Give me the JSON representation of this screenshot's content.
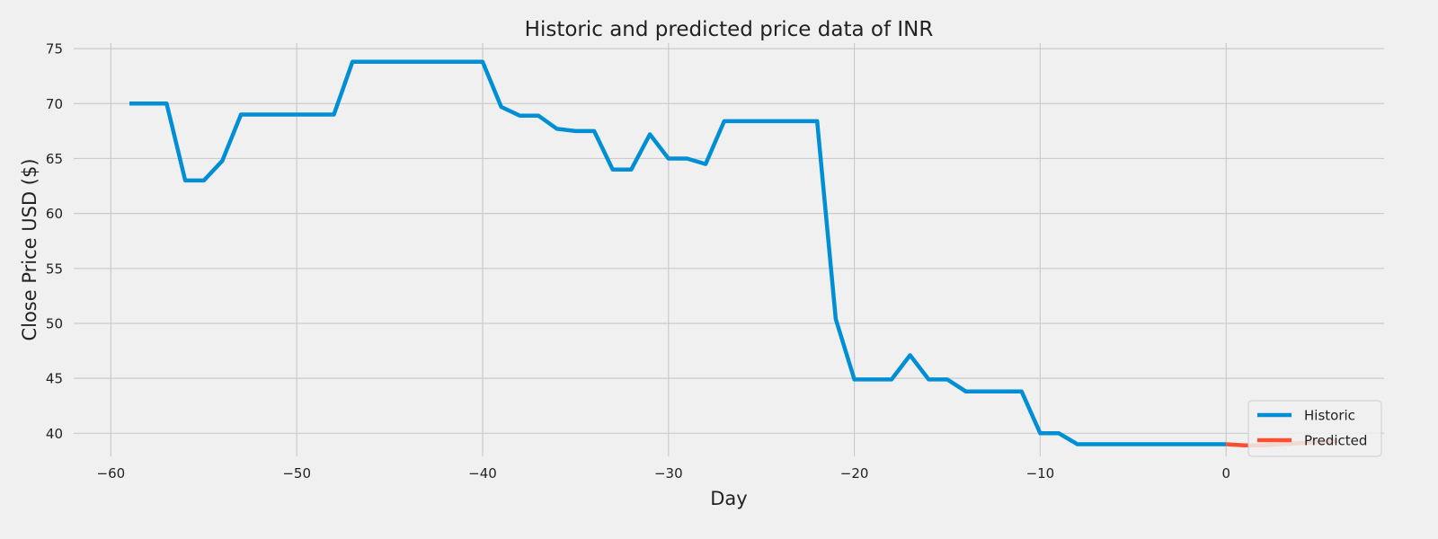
{
  "chart_data": {
    "type": "line",
    "title": "Historic and predicted price data of INR",
    "xlabel": "Day",
    "ylabel": "Close Price USD ($)",
    "xlim": [
      -62,
      8.5
    ],
    "ylim": [
      37.9,
      75.5
    ],
    "xticks": [
      -60,
      -50,
      -40,
      -30,
      -20,
      -10,
      0
    ],
    "xtick_labels": [
      "−60",
      "−50",
      "−40",
      "−30",
      "−20",
      "−10",
      "0"
    ],
    "yticks": [
      40,
      45,
      50,
      55,
      60,
      65,
      70,
      75
    ],
    "ytick_labels": [
      "40",
      "45",
      "50",
      "55",
      "60",
      "65",
      "70",
      "75"
    ],
    "grid": true,
    "legend_position": "lower-right",
    "series": [
      {
        "name": "Historic",
        "color": "#008fd5",
        "x": [
          -59,
          -58,
          -57,
          -56,
          -55,
          -54,
          -53,
          -52,
          -51,
          -50,
          -49,
          -48,
          -47,
          -46,
          -45,
          -44,
          -43,
          -42,
          -41,
          -40,
          -39,
          -38,
          -37,
          -36,
          -35,
          -34,
          -33,
          -32,
          -31,
          -30,
          -29,
          -28,
          -27,
          -26,
          -25,
          -24,
          -23,
          -22,
          -21,
          -20,
          -19,
          -18,
          -17,
          -16,
          -15,
          -14,
          -13,
          -12,
          -11,
          -10,
          -9,
          -8,
          -7,
          -6,
          -5,
          -4,
          -3,
          -2,
          -1,
          0
        ],
        "y": [
          70.0,
          70.0,
          70.0,
          63.0,
          63.0,
          64.8,
          69.0,
          69.0,
          69.0,
          69.0,
          69.0,
          69.0,
          73.8,
          73.8,
          73.8,
          73.8,
          73.8,
          73.8,
          73.8,
          73.8,
          69.7,
          68.9,
          68.9,
          67.7,
          67.5,
          67.5,
          64.0,
          64.0,
          67.2,
          65.0,
          65.0,
          64.5,
          68.4,
          68.4,
          68.4,
          68.4,
          68.4,
          68.4,
          50.4,
          44.9,
          44.9,
          44.9,
          47.1,
          44.9,
          44.9,
          43.8,
          43.8,
          43.8,
          43.8,
          40.0,
          40.0,
          39.0,
          39.0,
          39.0,
          39.0,
          39.0,
          39.0,
          39.0,
          39.0,
          39.0
        ]
      },
      {
        "name": "Predicted",
        "color": "#fc4f30",
        "x": [
          0,
          1,
          2,
          3,
          4,
          5,
          6
        ],
        "y": [
          39.0,
          38.9,
          38.9,
          39.0,
          39.1,
          39.2,
          39.3
        ]
      }
    ]
  }
}
